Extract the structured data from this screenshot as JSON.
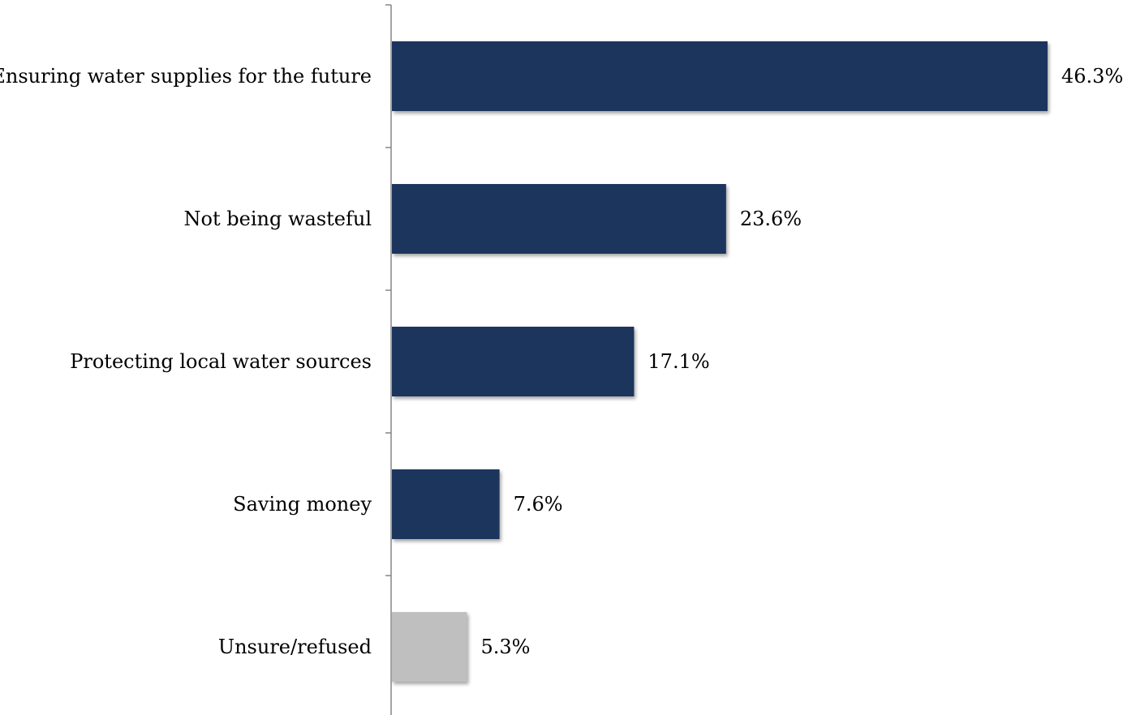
{
  "chart_data": {
    "type": "bar",
    "orientation": "horizontal",
    "categories": [
      "Ensuring water supplies for the future",
      "Not being wasteful",
      "Protecting local water sources",
      "Saving money",
      "Unsure/refused"
    ],
    "values": [
      46.3,
      23.6,
      17.1,
      7.6,
      5.3
    ],
    "value_labels": [
      "46.3%",
      "23.6%",
      "17.1%",
      "7.6%",
      "5.3%"
    ],
    "unit": "%",
    "xlim": [
      0,
      46.3
    ],
    "grid": false,
    "legend": "none",
    "colors": {
      "bar": "#1b365d",
      "bar_unsure": "#bfbfbf",
      "axis": "#868686",
      "text": "#000000"
    }
  }
}
